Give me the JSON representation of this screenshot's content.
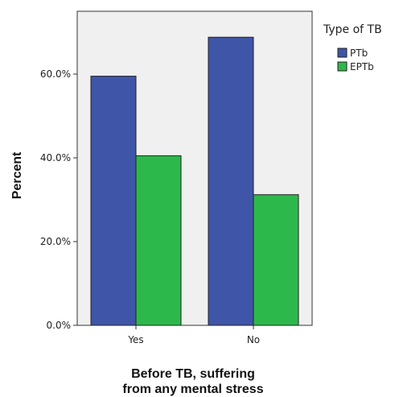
{
  "chart_data": {
    "type": "bar",
    "categories": [
      "Yes",
      "No"
    ],
    "series": [
      {
        "name": "PTb",
        "values": [
          59.5,
          68.8
        ],
        "color": "#3f55a8"
      },
      {
        "name": "EPTb",
        "values": [
          40.5,
          31.2
        ],
        "color": "#2db84b"
      }
    ],
    "xlabel": [
      "Before TB, suffering",
      "from any mental stress"
    ],
    "ylabel": "Percent",
    "ylim": [
      0,
      75
    ],
    "yticks": [
      0,
      20,
      40,
      60
    ],
    "ytick_labels": [
      "0.0%",
      "20.0%",
      "40.0%",
      "60.0%"
    ],
    "legend_title": "Type of TB",
    "legend_position": "top-right",
    "plot_background": "#f0f0f0",
    "grid": false
  }
}
